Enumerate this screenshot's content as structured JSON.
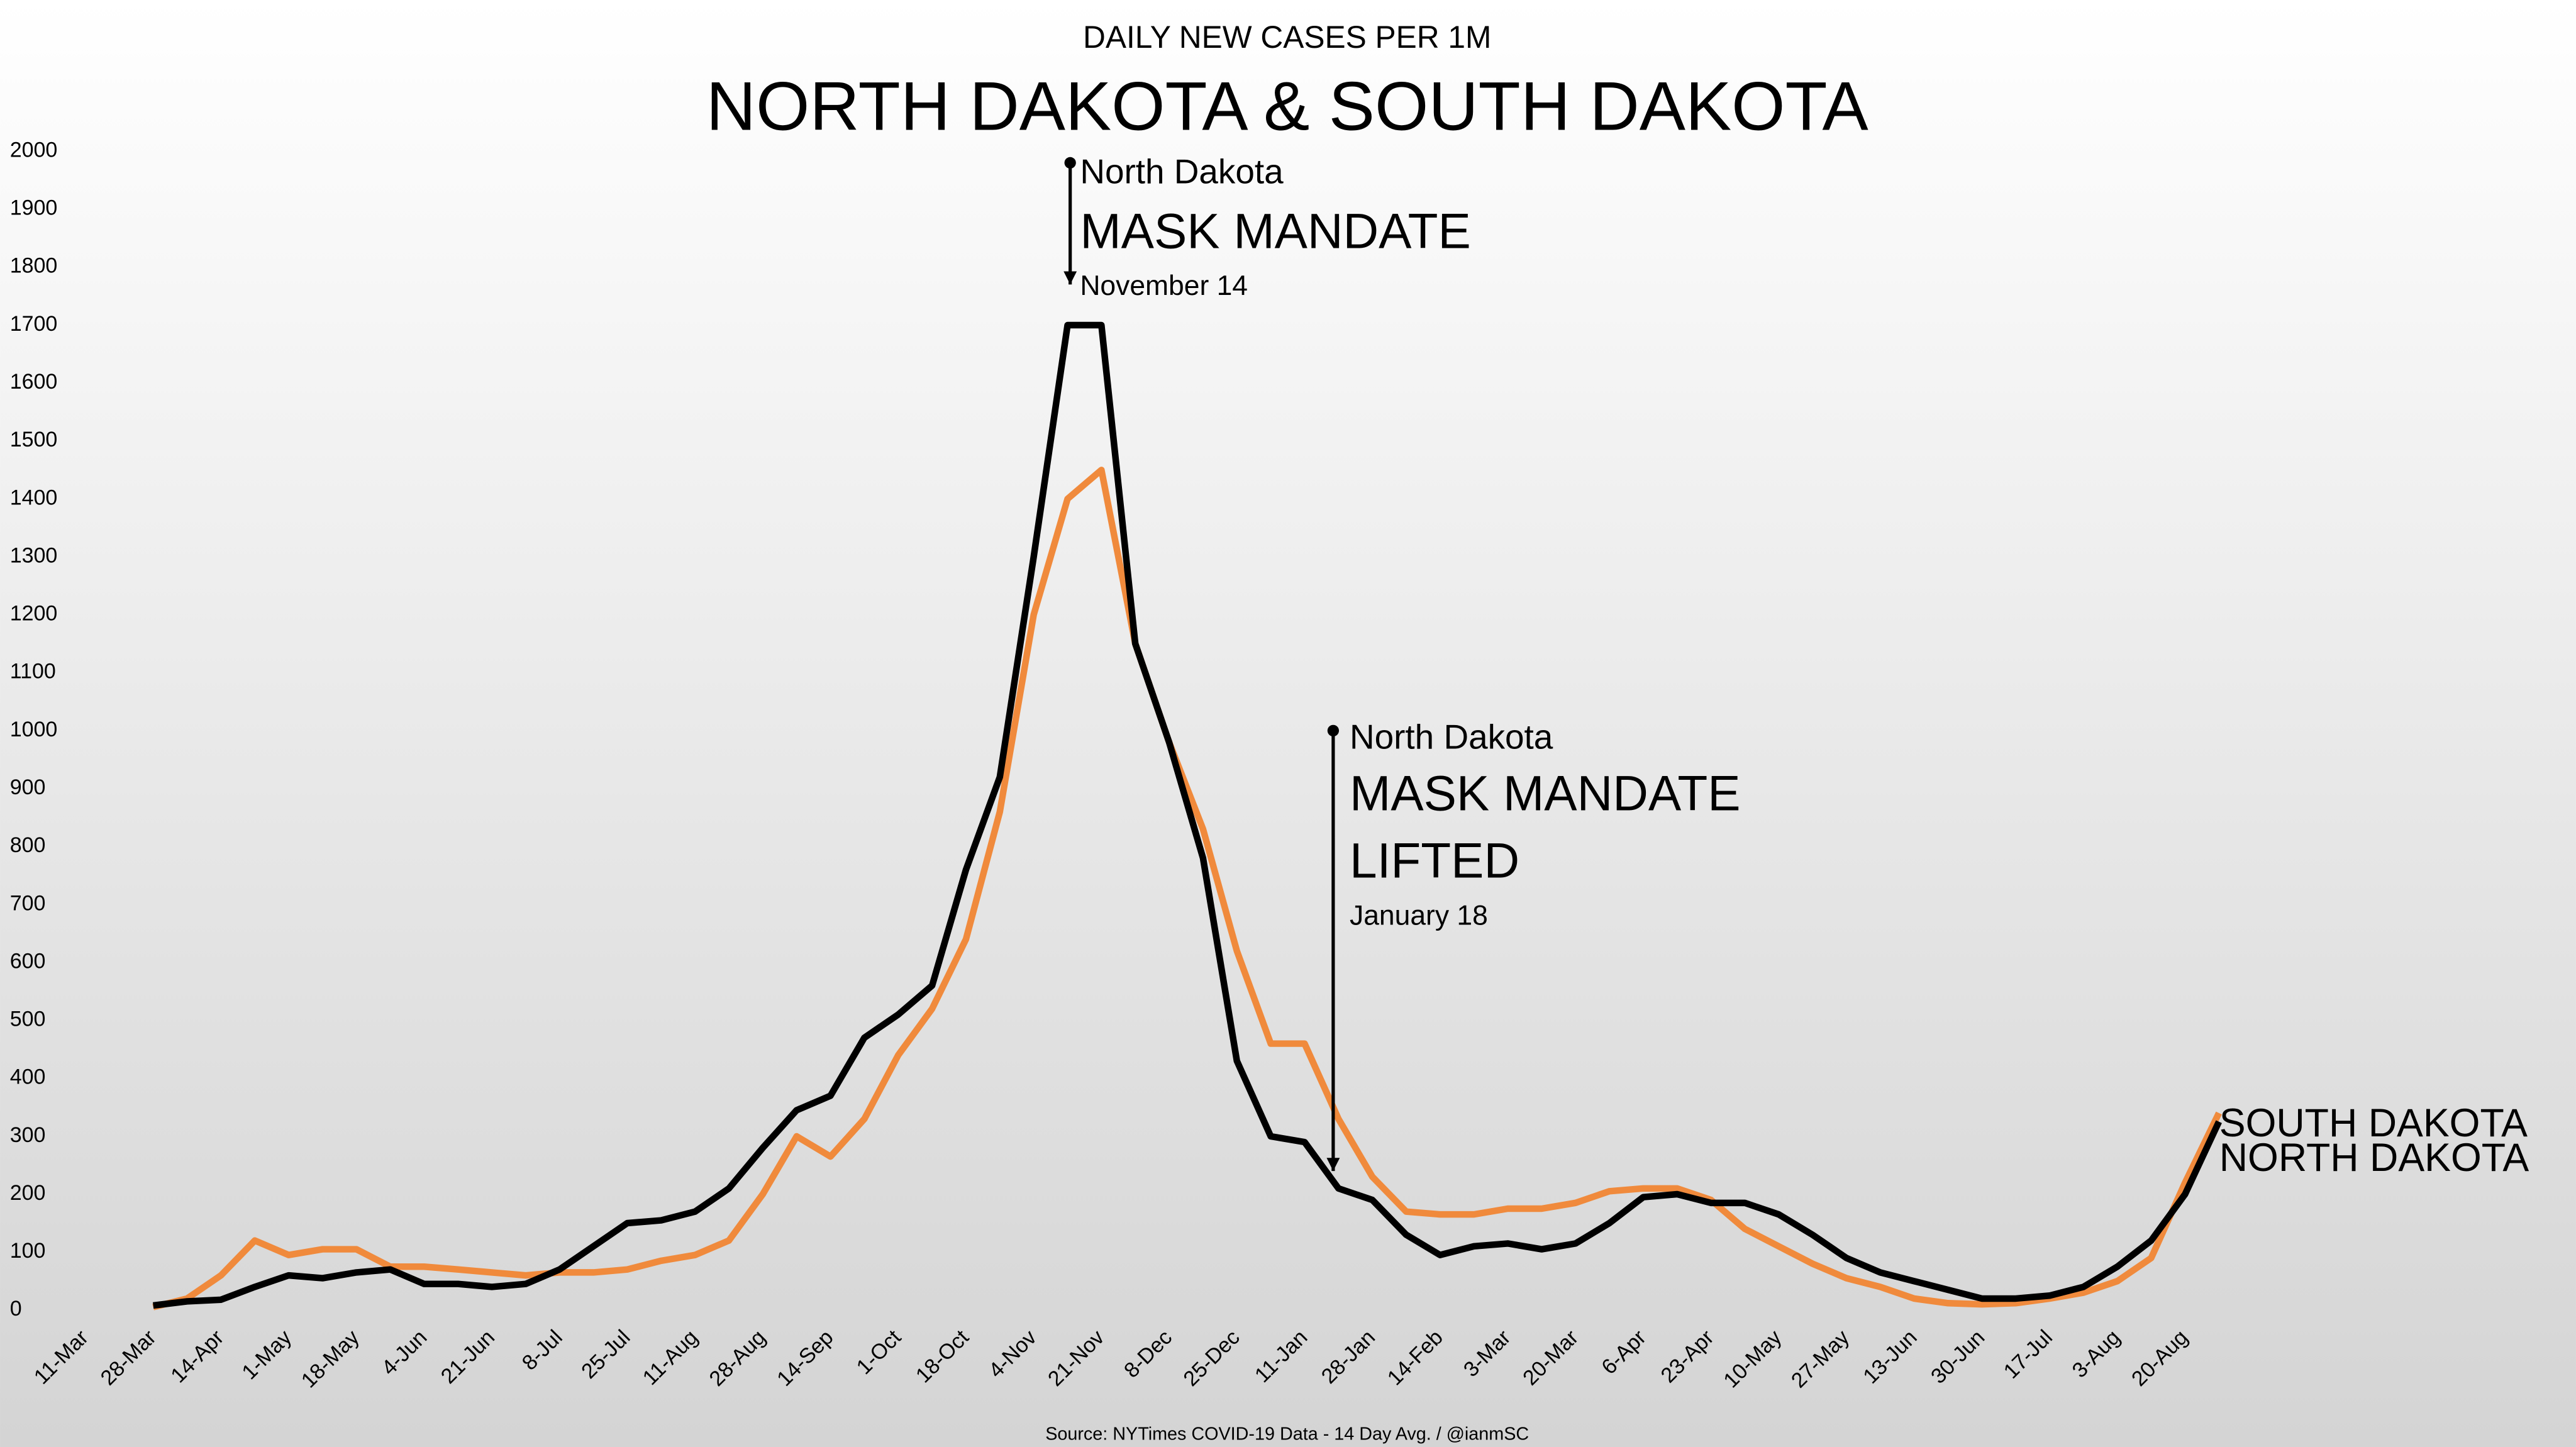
{
  "chart_data": {
    "type": "line",
    "subtitle": "DAILY NEW CASES PER 1M",
    "title": "NORTH DAKOTA & SOUTH DAKOTA",
    "source": "Source: NYTimes COVID-19 Data - 14 Day Avg. / @ianmSC",
    "categories": [
      "11-Mar",
      null,
      "28-Mar",
      null,
      "14-Apr",
      null,
      "1-May",
      null,
      "18-May",
      null,
      "4-Jun",
      null,
      "21-Jun",
      null,
      "8-Jul",
      null,
      "25-Jul",
      null,
      "11-Aug",
      null,
      "28-Aug",
      null,
      "14-Sep",
      null,
      "1-Oct",
      null,
      "18-Oct",
      null,
      "4-Nov",
      null,
      "21-Nov",
      null,
      "8-Dec",
      null,
      "25-Dec",
      null,
      "11-Jan",
      null,
      "28-Jan",
      null,
      "14-Feb",
      null,
      "3-Mar",
      null,
      "20-Mar",
      null,
      "6-Apr",
      null,
      "23-Apr",
      null,
      "10-May",
      null,
      "27-May",
      null,
      "13-Jun",
      null,
      "30-Jun",
      null,
      "17-Jul",
      null,
      "3-Aug",
      null,
      "20-Aug",
      null
    ],
    "series": [
      {
        "name": "SOUTH DAKOTA",
        "color": "#f08a3c",
        "values": [
          null,
          null,
          5,
          20,
          60,
          120,
          95,
          105,
          105,
          75,
          75,
          70,
          65,
          60,
          65,
          65,
          70,
          85,
          95,
          120,
          200,
          300,
          265,
          330,
          440,
          520,
          640,
          860,
          1200,
          1400,
          1450,
          1150,
          980,
          830,
          620,
          460,
          460,
          330,
          230,
          170,
          165,
          165,
          175,
          175,
          185,
          205,
          210,
          210,
          190,
          140,
          110,
          80,
          55,
          40,
          20,
          12,
          10,
          12,
          20,
          30,
          50,
          90,
          220,
          340
        ]
      },
      {
        "name": "NORTH DAKOTA",
        "color": "#000000",
        "values": [
          null,
          null,
          8,
          15,
          18,
          40,
          60,
          55,
          65,
          70,
          45,
          45,
          40,
          45,
          70,
          110,
          150,
          155,
          170,
          210,
          280,
          345,
          370,
          470,
          510,
          560,
          760,
          920,
          1300,
          1700,
          1700,
          1150,
          980,
          780,
          430,
          300,
          290,
          210,
          190,
          130,
          95,
          110,
          115,
          105,
          115,
          150,
          195,
          200,
          185,
          185,
          165,
          130,
          90,
          65,
          50,
          35,
          20,
          20,
          25,
          40,
          75,
          120,
          200,
          325
        ]
      }
    ],
    "ylim": [
      0,
      2000
    ],
    "yticks": [
      0,
      100,
      200,
      300,
      400,
      500,
      600,
      700,
      800,
      900,
      1000,
      1100,
      1200,
      1300,
      1400,
      1500,
      1600,
      1700,
      1800,
      1900,
      2000
    ],
    "annotations": [
      {
        "lines": [
          "North Dakota",
          "MASK MANDATE",
          "November 14"
        ]
      },
      {
        "lines": [
          "North Dakota",
          "MASK MANDATE",
          "LIFTED",
          "January 18"
        ]
      }
    ]
  }
}
